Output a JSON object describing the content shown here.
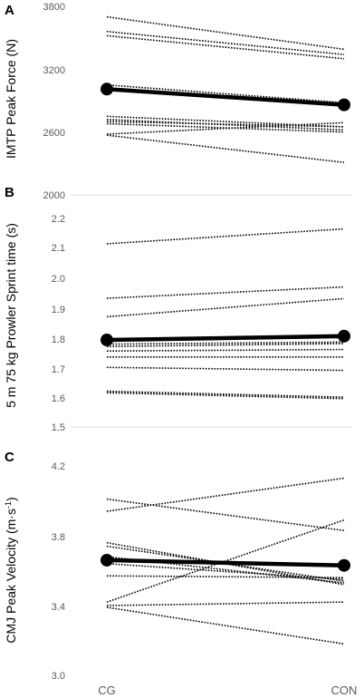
{
  "figure": {
    "x_categories": [
      "CG",
      "CON"
    ]
  },
  "chart_data": [
    {
      "type": "line",
      "panel_label": "A",
      "ylabel": "IMTP Peak Force (N)",
      "yticks": [
        "3800",
        "3200",
        "2600",
        "2000"
      ],
      "ylim": [
        2000,
        3800
      ],
      "categories": [
        "CG",
        "CON"
      ],
      "individual_lines": [
        [
          3700,
          3390
        ],
        [
          3560,
          3340
        ],
        [
          3520,
          3300
        ],
        [
          3050,
          2880
        ],
        [
          3010,
          2860
        ],
        [
          2750,
          2650
        ],
        [
          2720,
          2620
        ],
        [
          2700,
          2650
        ],
        [
          2680,
          2600
        ],
        [
          2580,
          2690
        ],
        [
          2570,
          2310
        ]
      ],
      "mean_line": [
        3010,
        2860
      ]
    },
    {
      "type": "line",
      "panel_label": "B",
      "ylabel": "5 m 75 kg Prowler Sprint time (s)",
      "yticks": [
        "2.2",
        "2.1",
        "2.0",
        "1.9",
        "1.8",
        "1.7",
        "1.6",
        "1.5"
      ],
      "ylim": [
        1.5,
        2.25
      ],
      "categories": [
        "CG",
        "CON"
      ],
      "individual_lines": [
        [
          2.115,
          2.165
        ],
        [
          1.932,
          1.97
        ],
        [
          1.87,
          1.931
        ],
        [
          1.79,
          1.8
        ],
        [
          1.778,
          1.785
        ],
        [
          1.77,
          1.78
        ],
        [
          1.755,
          1.76
        ],
        [
          1.735,
          1.735
        ],
        [
          1.7,
          1.69
        ],
        [
          1.62,
          1.6
        ],
        [
          1.615,
          1.595
        ]
      ],
      "mean_line": [
        1.792,
        1.805
      ]
    },
    {
      "type": "line",
      "panel_label": "C",
      "ylabel": "CMJ Peak Velocity (m·s-1)",
      "yticks": [
        "4.2",
        "3.8",
        "3.4",
        "3.0"
      ],
      "ylim": [
        3.0,
        4.2
      ],
      "categories": [
        "CG",
        "CON"
      ],
      "individual_lines": [
        [
          4.01,
          3.83
        ],
        [
          3.94,
          4.13
        ],
        [
          3.76,
          3.52
        ],
        [
          3.74,
          3.54
        ],
        [
          3.68,
          3.53
        ],
        [
          3.64,
          3.55
        ],
        [
          3.57,
          3.56
        ],
        [
          3.42,
          3.89
        ],
        [
          3.4,
          3.42
        ],
        [
          3.39,
          3.18
        ]
      ],
      "mean_line": [
        3.66,
        3.63
      ]
    }
  ]
}
